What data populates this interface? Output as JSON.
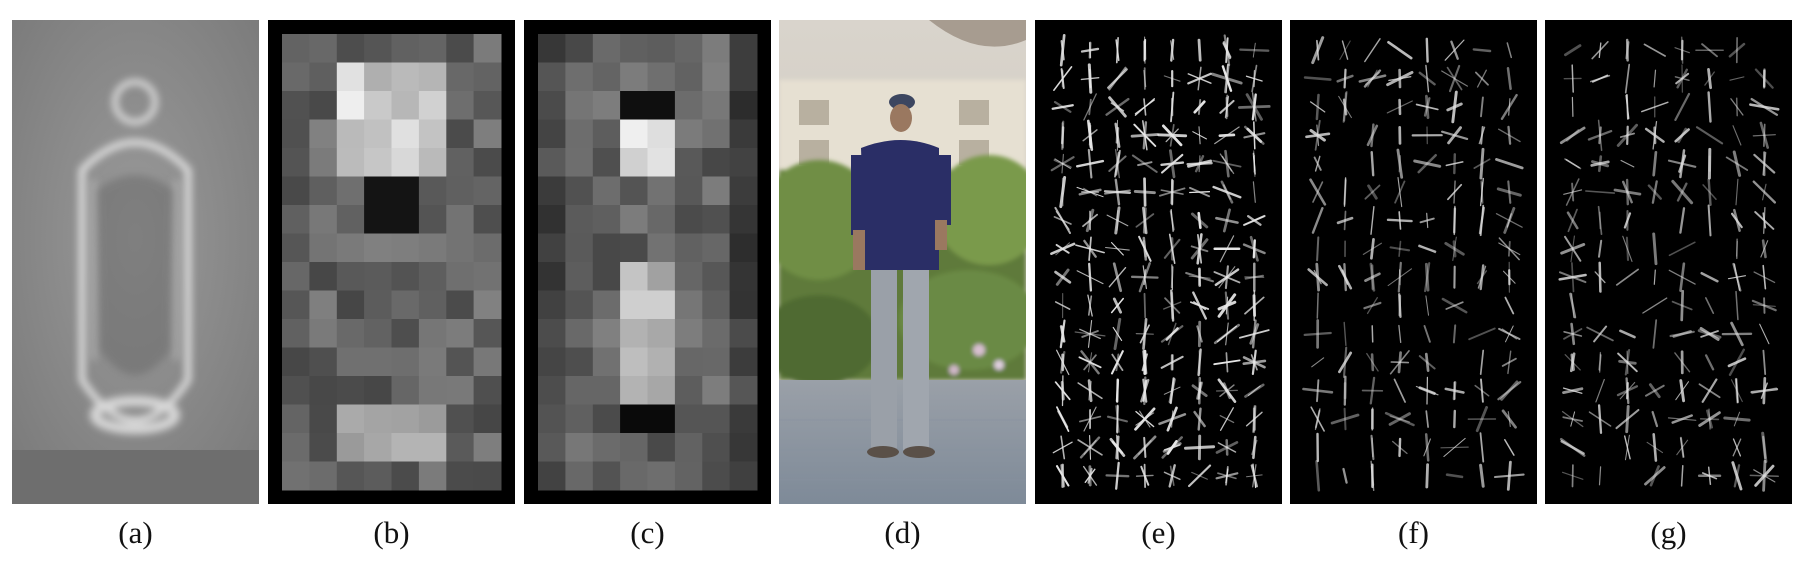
{
  "figure": {
    "panels": [
      {
        "label": "(a)"
      },
      {
        "label": "(b)"
      },
      {
        "label": "(c)"
      },
      {
        "label": "(d)"
      },
      {
        "label": "(e)"
      },
      {
        "label": "(f)"
      },
      {
        "label": "(g)"
      }
    ]
  }
}
